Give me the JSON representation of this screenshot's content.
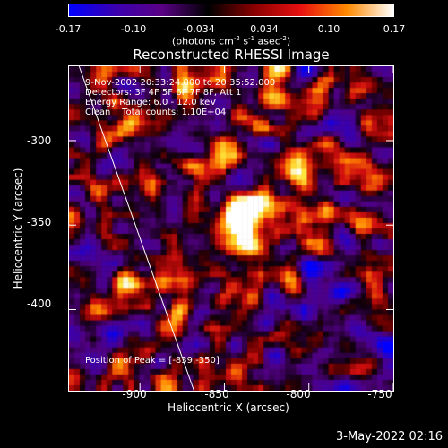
{
  "colorbar": {
    "ticks": [
      "-0.17",
      "-0.10",
      "-0.034",
      "0.034",
      "0.10",
      "0.17"
    ],
    "units_prefix": "(photons cm",
    "units_exp1": "-2",
    "units_mid1": " s",
    "units_exp2": "-1",
    "units_mid2": " asec",
    "units_exp3": "-2",
    "units_suffix": ")",
    "colors": [
      "#0000ff",
      "#3a00b0",
      "#5a0085",
      "#000000",
      "#8a0000",
      "#e81010",
      "#ff8a00",
      "#ffffff"
    ]
  },
  "title": "Reconstructed RHESSI Image",
  "annotations": {
    "line1": "9-Nov-2002 20:33:24.000 to 20:35:52.000",
    "line2": "Detectors: 3F 4F 5F 6F 7F 8F, Att 1",
    "line3": "Energy Range: 6.0 - 12.0 keV",
    "line4": "Clean    Total counts: 1.10E+04",
    "peak": "Position of Peak = [-839,-350]"
  },
  "axes": {
    "xlabel": "Heliocentric X (arcsec)",
    "ylabel": "Heliocentric Y (arcsec)",
    "xticks": [
      "-900",
      "-850",
      "-800",
      "-750"
    ],
    "yticks": [
      "-300",
      "-350",
      "-400"
    ],
    "xlim": [
      -942,
      -750
    ],
    "ylim": [
      -448,
      -256
    ]
  },
  "peak": {
    "x": -839,
    "y": -350
  },
  "limb_line": {
    "x_top": -936,
    "x_bottom": -868
  },
  "timestamp": "3-May-2022 02:16"
}
